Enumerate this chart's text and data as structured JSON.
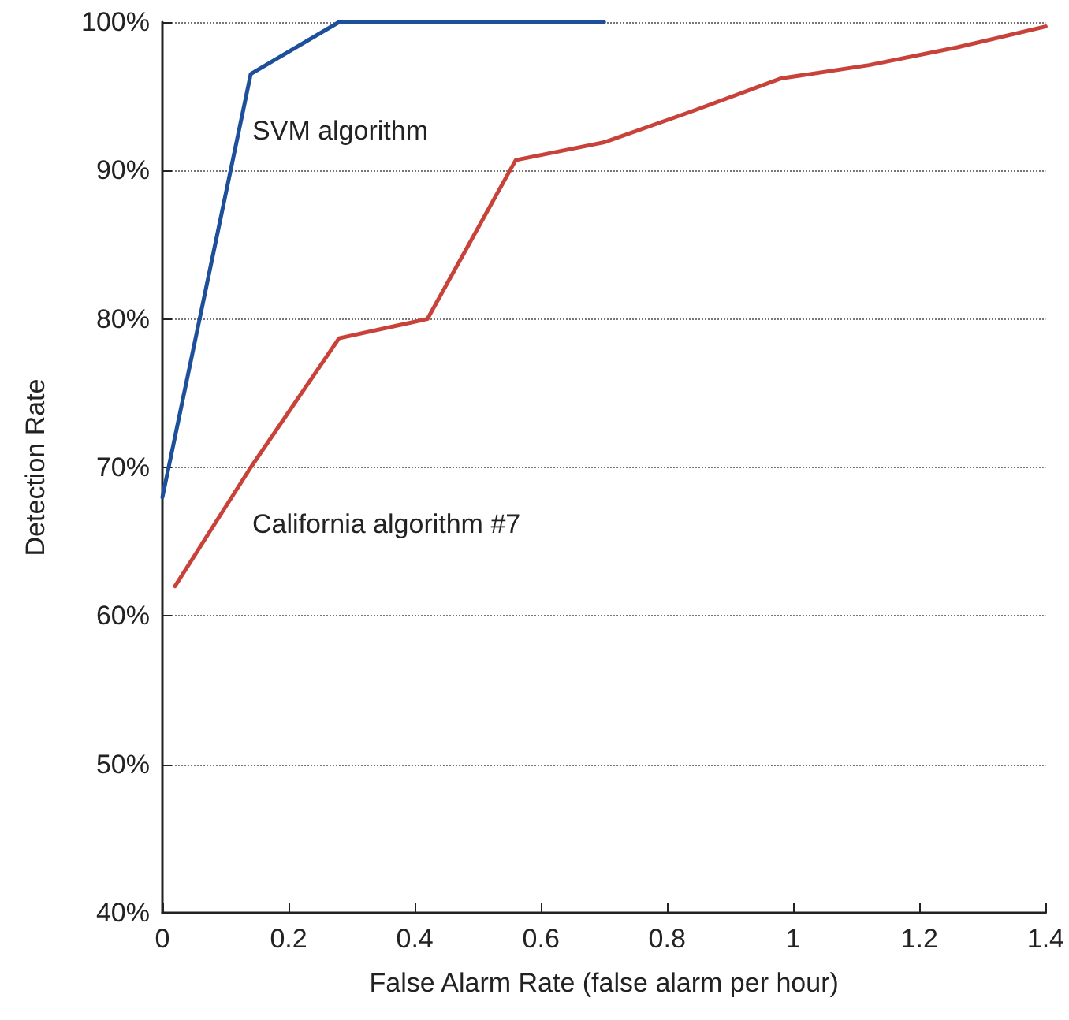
{
  "chart_data": {
    "type": "line",
    "xlabel": "False Alarm Rate (false alarm per hour)",
    "ylabel": "Detection Rate",
    "series": [
      {
        "name": "SVM algorithm",
        "color": "#1d4f9a",
        "x": [
          0,
          0.14,
          0.28,
          0.7
        ],
        "values": [
          68,
          96.5,
          100,
          100
        ]
      },
      {
        "name": "California algorithm #7",
        "color": "#c9423a",
        "x": [
          0.02,
          0.14,
          0.28,
          0.42,
          0.56,
          0.7,
          0.84,
          0.98,
          1.12,
          1.26,
          1.4
        ],
        "values": [
          62,
          70,
          78.7,
          80,
          90.7,
          91.9,
          94,
          96.2,
          97.1,
          98.3,
          99.7
        ]
      }
    ],
    "xlim": [
      0,
      1.4
    ],
    "xticks": [
      0,
      0.2,
      0.4,
      0.6,
      0.8,
      1,
      1.2,
      1.4
    ],
    "ylim": [
      40,
      100
    ],
    "yticks": [
      {
        "value": 40,
        "label": "40%"
      },
      {
        "value": 50,
        "label": "50%"
      },
      {
        "value": 60,
        "label": "60%"
      },
      {
        "value": 70,
        "label": "70%"
      },
      {
        "value": 80,
        "label": "80%"
      },
      {
        "value": 90,
        "label": "90%"
      },
      {
        "value": 100,
        "label": "100%"
      }
    ],
    "grid": "y",
    "legend": false,
    "marker": "none"
  }
}
